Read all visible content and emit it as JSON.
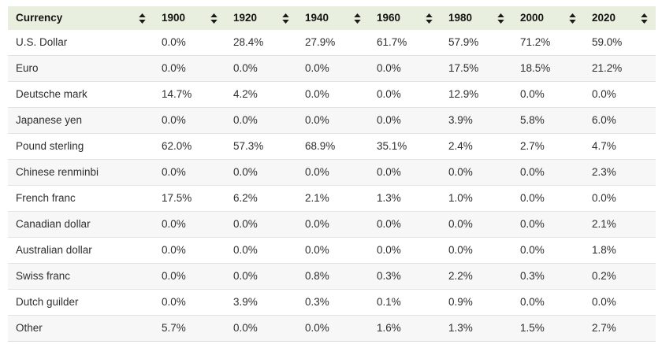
{
  "colors": {
    "header_bg": "#e8efde",
    "header_text": "#141414",
    "body_text": "#2e2e2e",
    "row_stripe": "#f7f7f7",
    "row_border": "#e3e3e3",
    "sort_icon": "#1a1a1a"
  },
  "icons": {
    "sort": "sort-arrows-icon"
  },
  "table": {
    "columns": [
      "Currency",
      "1900",
      "1920",
      "1940",
      "1960",
      "1980",
      "2000",
      "2020"
    ],
    "rows": [
      {
        "currency": "U.S. Dollar",
        "values": [
          "0.0%",
          "28.4%",
          "27.9%",
          "61.7%",
          "57.9%",
          "71.2%",
          "59.0%"
        ]
      },
      {
        "currency": "Euro",
        "values": [
          "0.0%",
          "0.0%",
          "0.0%",
          "0.0%",
          "17.5%",
          "18.5%",
          "21.2%"
        ]
      },
      {
        "currency": "Deutsche mark",
        "values": [
          "14.7%",
          "4.2%",
          "0.0%",
          "0.0%",
          "12.9%",
          "0.0%",
          "0.0%"
        ]
      },
      {
        "currency": "Japanese yen",
        "values": [
          "0.0%",
          "0.0%",
          "0.0%",
          "0.0%",
          "3.9%",
          "5.8%",
          "6.0%"
        ]
      },
      {
        "currency": "Pound sterling",
        "values": [
          "62.0%",
          "57.3%",
          "68.9%",
          "35.1%",
          "2.4%",
          "2.7%",
          "4.7%"
        ]
      },
      {
        "currency": "Chinese renminbi",
        "values": [
          "0.0%",
          "0.0%",
          "0.0%",
          "0.0%",
          "0.0%",
          "0.0%",
          "2.3%"
        ]
      },
      {
        "currency": "French franc",
        "values": [
          "17.5%",
          "6.2%",
          "2.1%",
          "1.3%",
          "1.0%",
          "0.0%",
          "0.0%"
        ]
      },
      {
        "currency": "Canadian dollar",
        "values": [
          "0.0%",
          "0.0%",
          "0.0%",
          "0.0%",
          "0.0%",
          "0.0%",
          "2.1%"
        ]
      },
      {
        "currency": "Australian dollar",
        "values": [
          "0.0%",
          "0.0%",
          "0.0%",
          "0.0%",
          "0.0%",
          "0.0%",
          "1.8%"
        ]
      },
      {
        "currency": "Swiss franc",
        "values": [
          "0.0%",
          "0.0%",
          "0.8%",
          "0.3%",
          "2.2%",
          "0.3%",
          "0.2%"
        ]
      },
      {
        "currency": "Dutch guilder",
        "values": [
          "0.0%",
          "3.9%",
          "0.3%",
          "0.1%",
          "0.9%",
          "0.0%",
          "0.0%"
        ]
      },
      {
        "currency": "Other",
        "values": [
          "5.7%",
          "0.0%",
          "0.0%",
          "1.6%",
          "1.3%",
          "1.5%",
          "2.7%"
        ]
      }
    ]
  },
  "chart_data": {
    "type": "table",
    "title": "",
    "unit": "%",
    "categories": [
      "1900",
      "1920",
      "1940",
      "1960",
      "1980",
      "2000",
      "2020"
    ],
    "series": [
      {
        "name": "U.S. Dollar",
        "values": [
          0.0,
          28.4,
          27.9,
          61.7,
          57.9,
          71.2,
          59.0
        ]
      },
      {
        "name": "Euro",
        "values": [
          0.0,
          0.0,
          0.0,
          0.0,
          17.5,
          18.5,
          21.2
        ]
      },
      {
        "name": "Deutsche mark",
        "values": [
          14.7,
          4.2,
          0.0,
          0.0,
          12.9,
          0.0,
          0.0
        ]
      },
      {
        "name": "Japanese yen",
        "values": [
          0.0,
          0.0,
          0.0,
          0.0,
          3.9,
          5.8,
          6.0
        ]
      },
      {
        "name": "Pound sterling",
        "values": [
          62.0,
          57.3,
          68.9,
          35.1,
          2.4,
          2.7,
          4.7
        ]
      },
      {
        "name": "Chinese renminbi",
        "values": [
          0.0,
          0.0,
          0.0,
          0.0,
          0.0,
          0.0,
          2.3
        ]
      },
      {
        "name": "French franc",
        "values": [
          17.5,
          6.2,
          2.1,
          1.3,
          1.0,
          0.0,
          0.0
        ]
      },
      {
        "name": "Canadian dollar",
        "values": [
          0.0,
          0.0,
          0.0,
          0.0,
          0.0,
          0.0,
          2.1
        ]
      },
      {
        "name": "Australian dollar",
        "values": [
          0.0,
          0.0,
          0.0,
          0.0,
          0.0,
          0.0,
          1.8
        ]
      },
      {
        "name": "Swiss franc",
        "values": [
          0.0,
          0.0,
          0.8,
          0.3,
          2.2,
          0.3,
          0.2
        ]
      },
      {
        "name": "Dutch guilder",
        "values": [
          0.0,
          3.9,
          0.3,
          0.1,
          0.9,
          0.0,
          0.0
        ]
      },
      {
        "name": "Other",
        "values": [
          5.7,
          0.0,
          0.0,
          1.6,
          1.3,
          1.5,
          2.7
        ]
      }
    ]
  }
}
